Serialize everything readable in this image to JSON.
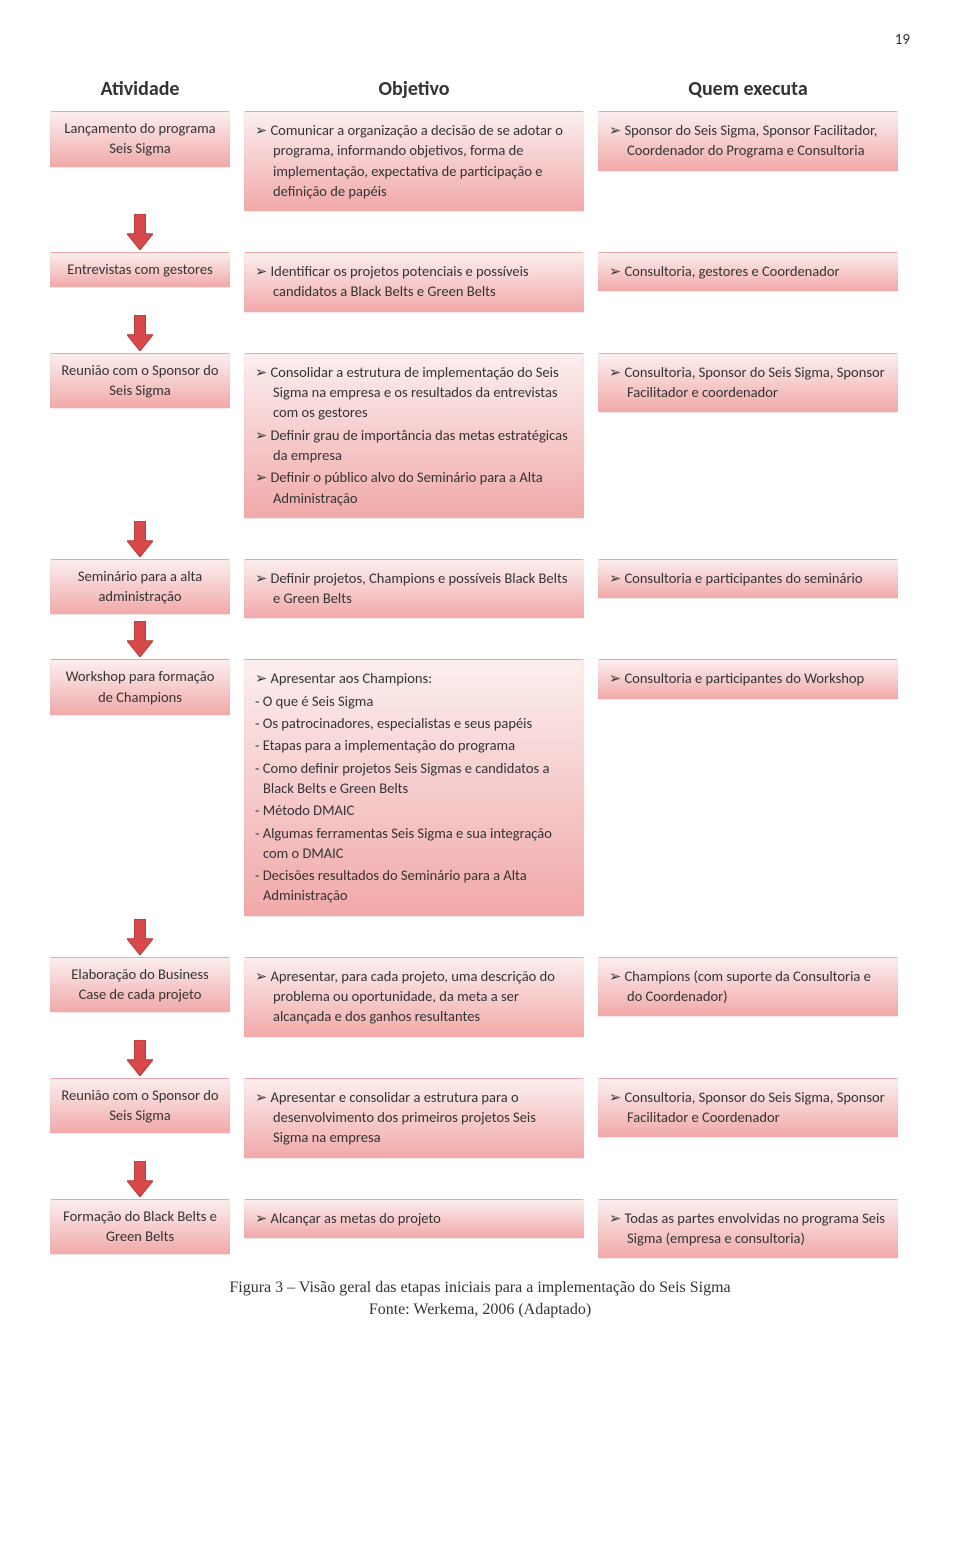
{
  "page_number": "19",
  "headers": {
    "activity": "Atividade",
    "objective": "Objetivo",
    "who": "Quem executa"
  },
  "colors": {
    "box_top": "#fcefef",
    "box_bottom": "#f1a9a9",
    "arrow_fill": "#d84a4a",
    "arrow_stroke": "#b63838",
    "text": "#333333"
  },
  "arrow_height": 36,
  "arrow_width": 26,
  "rows": [
    {
      "activity": "Lançamento do programa Seis Sigma",
      "objective": [
        "Comunicar a organização a decisão de se adotar o programa, informando objetivos, forma de implementação, expectativa de participação e definição de papéis"
      ],
      "who": [
        "Sponsor do Seis Sigma, Sponsor Facilitador, Coordenador do Programa e Consultoria"
      ]
    },
    {
      "activity": "Entrevistas com gestores",
      "objective": [
        "Identificar os projetos potenciais e possíveis candidatos a Black Belts e Green Belts"
      ],
      "who": [
        "Consultoria, gestores e Coordenador"
      ]
    },
    {
      "activity": "Reunião com o Sponsor do Seis Sigma",
      "objective": [
        "Consolidar a estrutura de implementação do Seis Sigma na empresa e os resultados da entrevistas com os gestores",
        "Definir grau de importância das metas estratégicas da empresa",
        "Definir o público alvo do Seminário para a Alta Administração"
      ],
      "who": [
        "Consultoria, Sponsor do Seis Sigma, Sponsor Facilitador e coordenador"
      ]
    },
    {
      "activity": "Seminário para a alta administração",
      "objective": [
        "Definir projetos, Champions e possíveis Black Belts e Green Belts"
      ],
      "who": [
        "Consultoria e participantes do seminário"
      ]
    },
    {
      "activity": "Workshop para formação de Champions",
      "objective": [
        "Apresentar aos Champions:"
      ],
      "objective_sublines": [
        "- O que é Seis Sigma",
        "- Os patrocinadores, especialistas e seus papéis",
        "- Etapas para a implementação do programa",
        "- Como definir projetos Seis Sigmas e candidatos a Black Belts e Green Belts",
        "- Método DMAIC",
        "- Algumas ferramentas Seis Sigma e sua integração com o DMAIC",
        "- Decisões resultados do Seminário para a Alta Administração"
      ],
      "who": [
        "Consultoria e participantes do Workshop"
      ]
    },
    {
      "activity": "Elaboração do Business Case de cada projeto",
      "objective": [
        "Apresentar, para cada projeto, uma descrição do problema ou oportunidade, da meta a ser alcançada e dos ganhos resultantes"
      ],
      "who": [
        "Champions (com suporte da Consultoria e do Coordenador)"
      ]
    },
    {
      "activity": "Reunião com o Sponsor do Seis Sigma",
      "objective": [
        "Apresentar e consolidar a estrutura para o desenvolvimento dos primeiros projetos Seis Sigma na empresa"
      ],
      "who": [
        "Consultoria, Sponsor do Seis Sigma, Sponsor Facilitador e Coordenador"
      ]
    },
    {
      "activity": "Formação do Black Belts e Green Belts",
      "objective": [
        "Alcançar as metas do projeto"
      ],
      "who": [
        "Todas as partes envolvidas no programa Seis Sigma (empresa e consultoria)"
      ]
    }
  ],
  "caption_line1": "Figura 3 – Visão geral das etapas iniciais para a implementação do Seis Sigma",
  "caption_line2": "Fonte: Werkema, 2006 (Adaptado)"
}
